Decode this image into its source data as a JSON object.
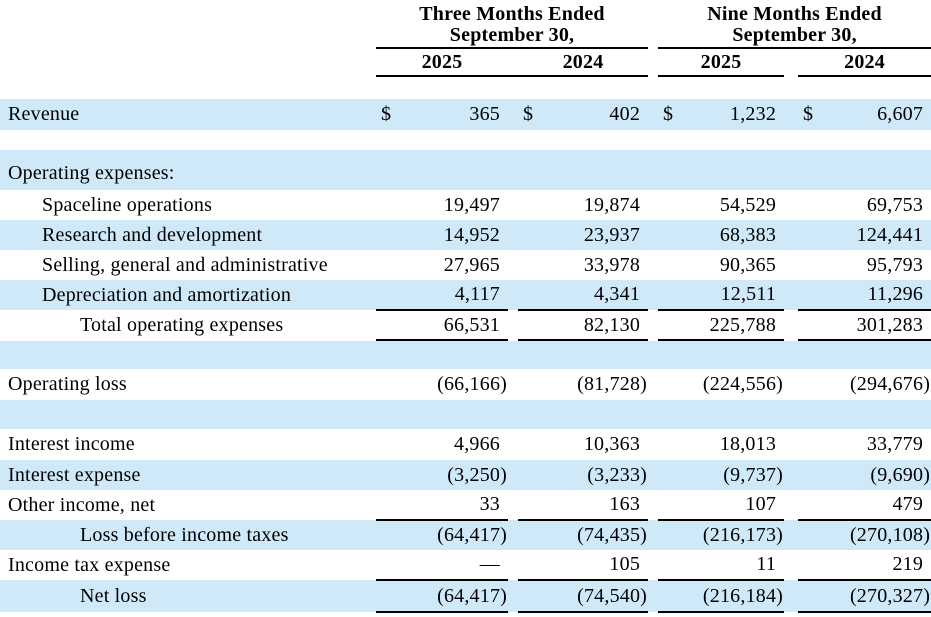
{
  "accent": {
    "highlight_color": "#cfe9f8",
    "rule_color": "#000000",
    "text_color": "#000000"
  },
  "table": {
    "currency_symbol": "$",
    "header": {
      "groups": [
        {
          "title_line1": "Three Months Ended",
          "title_line2": "September 30,",
          "years": [
            "2025",
            "2024"
          ],
          "years_rule": "continuous"
        },
        {
          "title_line1": "Nine Months Ended",
          "title_line2": "September 30,",
          "years": [
            "2025",
            "2024"
          ],
          "years_rule": "split"
        }
      ]
    },
    "rows": [
      {
        "type": "data",
        "label": "Revenue",
        "indent": 0,
        "bg": "highlight",
        "dollar": true,
        "height_class": "h-rev",
        "values": [
          "365",
          "402",
          "1,232",
          "6,607"
        ]
      },
      {
        "type": "spacer",
        "bg": "plain",
        "size": "sm"
      },
      {
        "type": "data",
        "label": "Operating expenses:",
        "indent": 0,
        "bg": "highlight",
        "tall": true,
        "values": [
          "",
          "",
          "",
          ""
        ]
      },
      {
        "type": "data",
        "label": "Spaceline operations",
        "indent": 1,
        "bg": "plain",
        "values": [
          "19,497",
          "19,874",
          "54,529",
          "69,753"
        ]
      },
      {
        "type": "data",
        "label": "Research and development",
        "indent": 1,
        "bg": "highlight",
        "values": [
          "14,952",
          "23,937",
          "68,383",
          "124,441"
        ]
      },
      {
        "type": "data",
        "label": "Selling, general and administrative",
        "indent": 1,
        "bg": "plain",
        "values": [
          "27,965",
          "33,978",
          "90,365",
          "95,793"
        ]
      },
      {
        "type": "data",
        "label": "Depreciation and amortization",
        "indent": 1,
        "bg": "highlight",
        "rule_below": true,
        "values": [
          "4,117",
          "4,341",
          "12,511",
          "11,296"
        ]
      },
      {
        "type": "data",
        "label": "Total operating expenses",
        "indent": 2,
        "bg": "plain",
        "rule_below": true,
        "values": [
          "66,531",
          "82,130",
          "225,788",
          "301,283"
        ]
      },
      {
        "type": "spacer",
        "bg": "highlight",
        "size": "md"
      },
      {
        "type": "data",
        "label": "Operating loss",
        "indent": 0,
        "bg": "plain",
        "height_class": "h-31",
        "values": [
          "(66,166)",
          "(81,728)",
          "(224,556)",
          "(294,676)"
        ]
      },
      {
        "type": "spacer",
        "bg": "highlight",
        "size": "md"
      },
      {
        "type": "data",
        "label": "Interest income",
        "indent": 0,
        "bg": "plain",
        "height_class": "h-31",
        "values": [
          "4,966",
          "10,363",
          "18,013",
          "33,779"
        ]
      },
      {
        "type": "data",
        "label": "Interest expense",
        "indent": 0,
        "bg": "highlight",
        "values": [
          "(3,250)",
          "(3,233)",
          "(9,737)",
          "(9,690)"
        ]
      },
      {
        "type": "data",
        "label": "Other income, net",
        "indent": 0,
        "bg": "plain",
        "rule_below": true,
        "values": [
          "33",
          "163",
          "107",
          "479"
        ]
      },
      {
        "type": "data",
        "label": "Loss before income taxes",
        "indent": 2,
        "bg": "highlight",
        "values": [
          "(64,417)",
          "(74,435)",
          "(216,173)",
          "(270,108)"
        ]
      },
      {
        "type": "data",
        "label": "Income tax expense",
        "indent": 0,
        "bg": "plain",
        "rule_below": true,
        "values": [
          "—",
          "105",
          "11",
          "219"
        ]
      },
      {
        "type": "data",
        "label": "Net loss",
        "indent": 2,
        "bg": "highlight",
        "rule_below": true,
        "height_class": "h-32",
        "values": [
          "(64,417)",
          "(74,540)",
          "(216,184)",
          "(270,327)"
        ]
      }
    ]
  }
}
